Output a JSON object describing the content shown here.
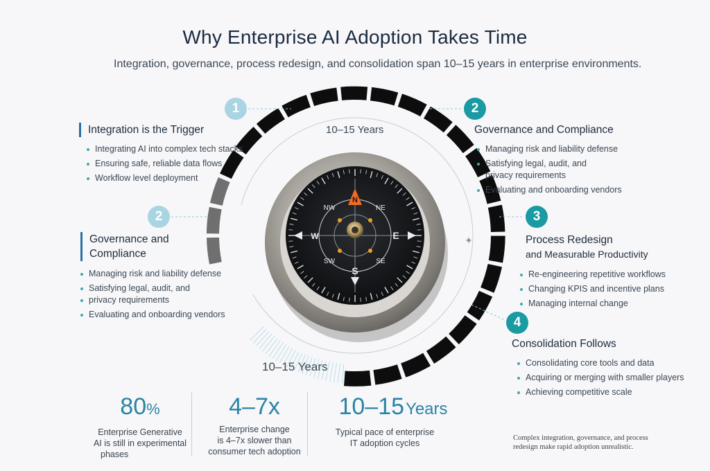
{
  "title": "Why Enterprise AI Adoption Takes Time",
  "subtitle": "Integration, governance, process redesign, and consolidation span 10–15 years in enterprise environments.",
  "arc_labels": {
    "inner": "10–15 Years",
    "bottom": "10–15 Years"
  },
  "compass": {
    "n": "N",
    "s": "S",
    "e": "E",
    "w": "W",
    "nw": "NW",
    "ne": "NE",
    "sw": "SW",
    "se": "SE"
  },
  "panels": {
    "integration": {
      "number": "1",
      "heading": "Integration is the Trigger",
      "bullets": [
        "Integrating AI into complex tech stacks",
        "Ensuring safe, reliable data flows",
        "Workflow level deployment"
      ]
    },
    "governance_left": {
      "number": "2",
      "heading_line1": "Governance and",
      "heading_line2": "Compliance",
      "bullets": [
        "Managing risk and liability defense",
        "Satisfying legal, audit, and",
        "privacy requirements",
        "Evaluating and onboarding vendors"
      ]
    },
    "governance_right": {
      "number": "2",
      "heading": "Governance and Compliance",
      "bullets": [
        "Managing risk and liability defense",
        "Satisfying legal, audit, and privacy requirements",
        "Evaluating and onboarding vendors"
      ]
    },
    "process": {
      "number": "3",
      "heading_line1": "Process Redesign",
      "heading_line2": "and Measurable Productivity",
      "bullets": [
        "Re-engineering repetitive workflows",
        "Changing KPIS and incentive plans",
        "Managing internal change"
      ]
    },
    "consolidation": {
      "number": "4",
      "heading": "Consolidation Follows",
      "bullets": [
        "Consolidating core tools and data",
        "Acquiring or merging with smaller players",
        "Achieving competitive scale"
      ]
    }
  },
  "stats": [
    {
      "value": "80",
      "unit": "%",
      "desc": [
        "Enterprise Generative",
        "AI is still in experimental",
        "phases"
      ]
    },
    {
      "value": "4–7x",
      "unit": "",
      "desc": [
        "Enterprise change",
        "is  4–7x slower than",
        "consumer tech adoption"
      ]
    },
    {
      "value": "10–15",
      "unit": "Years",
      "desc": [
        "Typical pace of enterprise",
        "IT adoption cycles"
      ]
    }
  ],
  "footnote": "Complex integration, governance, and process redesign make rapid adoption unrealistic.",
  "colors": {
    "teal": "#1a9aa2",
    "light_blue": "#a9d4e3",
    "navy": "#1b2a3f",
    "accent_orange": "#f26a21"
  }
}
